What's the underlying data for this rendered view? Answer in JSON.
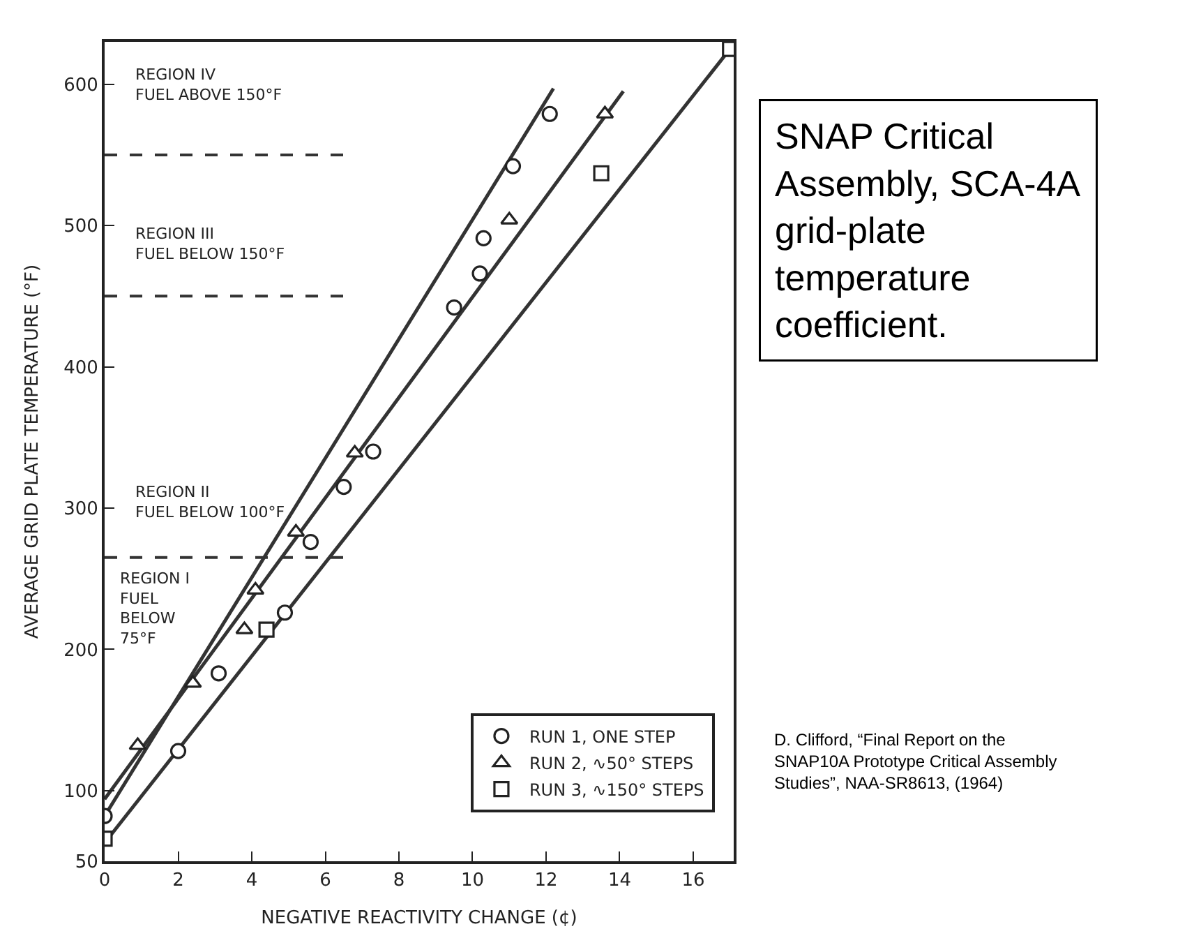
{
  "chart_data": {
    "type": "scatter",
    "xlabel": "NEGATIVE REACTIVITY CHANGE (¢)",
    "ylabel": "AVERAGE GRID PLATE TEMPERATURE (°F)",
    "xlim": [
      0,
      17.1
    ],
    "ylim": [
      50,
      630
    ],
    "xticks": [
      0,
      2,
      4,
      6,
      8,
      10,
      12,
      14,
      16
    ],
    "yticks": [
      50,
      100,
      200,
      300,
      400,
      500,
      600
    ],
    "legend": "bottom right",
    "series": [
      {
        "name": "RUN 1, ONE STEP",
        "color": "#222222",
        "marker": "circle",
        "x": [
          0,
          2.0,
          3.1,
          4.9,
          5.6,
          6.5,
          7.3,
          9.5,
          10.2,
          10.3,
          11.1,
          12.1
        ],
        "values": [
          82,
          128,
          183,
          226,
          276,
          315,
          340,
          442,
          466,
          491,
          542,
          579
        ]
      },
      {
        "name": "RUN 2, ∿50° STEPS",
        "color": "#222222",
        "marker": "triangle",
        "x": [
          0.9,
          2.4,
          3.8,
          4.1,
          5.2,
          6.8,
          11.0,
          13.6
        ],
        "values": [
          132,
          176,
          214,
          242,
          283,
          339,
          504,
          579
        ]
      },
      {
        "name": "RUN 3, ∿150° STEPS",
        "color": "#222222",
        "marker": "square",
        "x": [
          0,
          4.4,
          13.5,
          17.0
        ],
        "values": [
          66,
          214,
          537,
          625
        ]
      },
      {
        "type": "line",
        "color": "#333333",
        "x": [
          0,
          12.2
        ],
        "values": [
          82,
          597
        ]
      },
      {
        "type": "line",
        "color": "#333333",
        "x": [
          0,
          14.1
        ],
        "values": [
          94,
          595
        ]
      },
      {
        "type": "line",
        "color": "#333333",
        "x": [
          0,
          17.0
        ],
        "values": [
          63,
          625
        ]
      }
    ],
    "ref_lines": [
      {
        "axis": "y",
        "value": 550,
        "line_style": "dashed",
        "color": "#333333"
      },
      {
        "axis": "y",
        "value": 450,
        "line_style": "dashed",
        "color": "#333333"
      },
      {
        "axis": "y",
        "value": 265,
        "line_style": "dashed",
        "color": "#333333"
      }
    ],
    "annotations": [
      "REGION IV\nFUEL ABOVE 150°F",
      "REGION III\nFUEL BELOW 150°F",
      "REGION II\nFUEL BELOW 100°F",
      "REGION I\nFUEL\nBELOW\n75°F",
      "SNAP Critical Assembly, SCA-4A grid-plate temperature coefficient.",
      "D. Clifford, “Final Report on the SNAP10A Prototype Critical Assembly Studies”, NAA-SR8613, (1964)"
    ]
  }
}
